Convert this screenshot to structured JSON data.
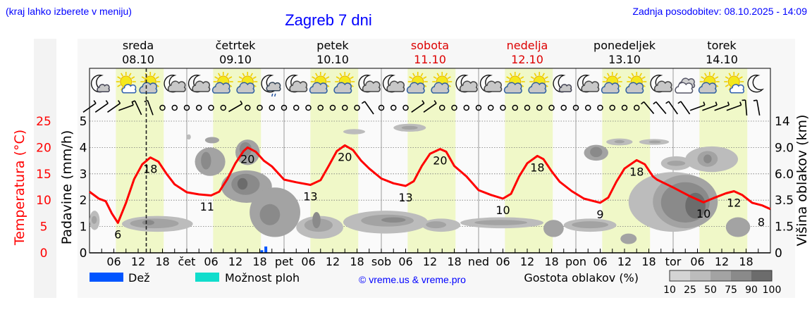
{
  "header": {
    "hint": "(kraj lahko izberete v meniju)",
    "title": "Zagreb 7 dni",
    "updated": "Zadnja posodobitev: 08.10.2025 - 14:09"
  },
  "colors": {
    "link_blue": "#0000ff",
    "temperature": "#ff0000",
    "weekend": "#dd0000",
    "daylight": "#f0f8c8",
    "rain": "#0055ff",
    "showers": "#11ddcc"
  },
  "days": [
    {
      "name": "sreda",
      "date": "08.10",
      "short": "",
      "weekend": false
    },
    {
      "name": "četrtek",
      "date": "09.10",
      "short": "čet",
      "weekend": false
    },
    {
      "name": "petek",
      "date": "10.10",
      "short": "pet",
      "weekend": false
    },
    {
      "name": "sobota",
      "date": "11.10",
      "short": "sob",
      "weekend": true
    },
    {
      "name": "nedelja",
      "date": "12.10",
      "short": "ned",
      "weekend": true
    },
    {
      "name": "ponedeljek",
      "date": "13.10",
      "short": "pon",
      "weekend": false
    },
    {
      "name": "torek",
      "date": "14.10",
      "short": "tor",
      "weekend": false
    }
  ],
  "hour_labels": [
    "06",
    "12",
    "18"
  ],
  "chart_data": {
    "type": "line",
    "x_unit": "hours from 08.10 00:00",
    "xlim": [
      0,
      168
    ],
    "now_marker_hour": 14,
    "axes": {
      "temperature": {
        "label": "Temperatura (°C)",
        "ticks": [
          "0",
          "5",
          "10",
          "15",
          "20",
          "25"
        ],
        "range": [
          0,
          25
        ]
      },
      "precipitation": {
        "label": "Padavine (mm/h)",
        "ticks": [
          "0",
          "1",
          "2",
          "3",
          "4",
          "5"
        ],
        "range": [
          0,
          5
        ]
      },
      "cloud_height": {
        "label": "Višina oblakov (km)",
        "ticks": [
          "0",
          "1.5",
          "3.5",
          "6.0",
          "9.0",
          "14"
        ],
        "values": [
          0,
          1.5,
          3.5,
          6.0,
          9.0,
          14
        ]
      }
    },
    "grid": true,
    "daylight_hours": [
      6.5,
      18.3
    ],
    "temperature": [
      [
        0,
        11.6
      ],
      [
        2.3,
        10.3
      ],
      [
        4,
        9.8
      ],
      [
        5.5,
        7.5
      ],
      [
        7,
        5.7
      ],
      [
        9,
        9.5
      ],
      [
        11,
        14
      ],
      [
        13,
        16.8
      ],
      [
        15,
        18.1
      ],
      [
        17,
        17.3
      ],
      [
        19,
        15
      ],
      [
        21,
        13
      ],
      [
        24,
        11.5
      ],
      [
        27,
        11.1
      ],
      [
        30,
        10.9
      ],
      [
        32,
        11.6
      ],
      [
        34,
        14
      ],
      [
        36,
        17
      ],
      [
        38,
        19.3
      ],
      [
        39,
        20
      ],
      [
        41,
        19.2
      ],
      [
        43,
        17.5
      ],
      [
        45,
        16.4
      ],
      [
        48,
        13.9
      ],
      [
        51,
        13.4
      ],
      [
        54.5,
        12.9
      ],
      [
        57,
        13.8
      ],
      [
        59,
        16.5
      ],
      [
        61,
        19.3
      ],
      [
        63,
        20.4
      ],
      [
        65,
        19.5
      ],
      [
        67,
        17.5
      ],
      [
        69,
        16
      ],
      [
        72,
        14.1
      ],
      [
        75,
        13.2
      ],
      [
        78,
        12.7
      ],
      [
        80,
        13.6
      ],
      [
        82,
        16.5
      ],
      [
        84,
        18.8
      ],
      [
        86.5,
        19.7
      ],
      [
        88,
        19.2
      ],
      [
        90,
        16.5
      ],
      [
        93,
        14.5
      ],
      [
        96,
        11.9
      ],
      [
        99,
        11
      ],
      [
        102,
        10.3
      ],
      [
        104,
        11.2
      ],
      [
        106,
        14.5
      ],
      [
        108,
        17
      ],
      [
        110.5,
        18.4
      ],
      [
        112,
        17.8
      ],
      [
        114,
        15.5
      ],
      [
        116,
        13.5
      ],
      [
        119,
        11.7
      ],
      [
        122,
        10.3
      ],
      [
        126,
        9.5
      ],
      [
        128,
        10.5
      ],
      [
        130,
        13.5
      ],
      [
        132,
        16
      ],
      [
        135,
        17.6
      ],
      [
        137,
        16.8
      ],
      [
        139,
        14.5
      ],
      [
        140,
        13.9
      ],
      [
        144,
        12.4
      ],
      [
        148,
        10.8
      ],
      [
        151.5,
        9.6
      ],
      [
        154,
        10.4
      ],
      [
        157,
        11.3
      ],
      [
        159,
        11.7
      ],
      [
        161,
        11
      ],
      [
        163.5,
        9.5
      ],
      [
        166,
        9
      ],
      [
        168,
        8.3
      ]
    ],
    "temperature_labels": [
      {
        "hour": 7,
        "value": "6"
      },
      {
        "hour": 15,
        "value": "18"
      },
      {
        "hour": 29,
        "value": "11"
      },
      {
        "hour": 39,
        "value": "20"
      },
      {
        "hour": 54.5,
        "value": "13"
      },
      {
        "hour": 63,
        "value": "20"
      },
      {
        "hour": 78,
        "value": "13"
      },
      {
        "hour": 86.5,
        "value": "20"
      },
      {
        "hour": 102,
        "value": "10"
      },
      {
        "hour": 110.5,
        "value": "18"
      },
      {
        "hour": 126,
        "value": "9"
      },
      {
        "hour": 135,
        "value": "18"
      },
      {
        "hour": 151.5,
        "value": "10"
      },
      {
        "hour": 159,
        "value": "12"
      },
      {
        "hour": 168,
        "value": "8"
      }
    ],
    "precipitation": [
      {
        "hour": 42.5,
        "rain": 0.1
      },
      {
        "hour": 43.5,
        "rain": 0.24
      }
    ],
    "cloud_cover": [
      {
        "h": [
          0,
          2.5
        ],
        "km": [
          1.3,
          2.7
        ],
        "d": 25
      },
      {
        "h": [
          0.5,
          1.8
        ],
        "km": [
          1.7,
          2.3
        ],
        "d": 50
      },
      {
        "h": [
          8,
          25.5
        ],
        "km": [
          1.2,
          2.3
        ],
        "d": 25
      },
      {
        "h": [
          10,
          22
        ],
        "km": [
          1.4,
          2.1
        ],
        "d": 50
      },
      {
        "h": [
          13,
          16
        ],
        "km": [
          1.6,
          2.0
        ],
        "d": 75
      },
      {
        "h": [
          26,
          33.5
        ],
        "km": [
          5.8,
          9
        ],
        "d": 50
      },
      {
        "h": [
          27.5,
          30
        ],
        "km": [
          6.5,
          8.5
        ],
        "d": 75
      },
      {
        "h": [
          28.5,
          32
        ],
        "km": [
          9.8,
          11
        ],
        "d": 50
      },
      {
        "h": [
          24,
          25
        ],
        "km": [
          10.5,
          11.5
        ],
        "d": 25
      },
      {
        "h": [
          36,
          42
        ],
        "km": [
          7,
          10.5
        ],
        "d": 50
      },
      {
        "h": [
          37,
          40
        ],
        "km": [
          8,
          10
        ],
        "d": 75
      },
      {
        "h": [
          32.5,
          45
        ],
        "km": [
          3.3,
          6.4
        ],
        "d": 50
      },
      {
        "h": [
          35,
          42
        ],
        "km": [
          4,
          6
        ],
        "d": 75
      },
      {
        "h": [
          36.5,
          39
        ],
        "km": [
          4.5,
          5.6
        ],
        "d": 90
      },
      {
        "h": [
          39.5,
          52
        ],
        "km": [
          0.9,
          4.7
        ],
        "d": 50
      },
      {
        "h": [
          42,
          47
        ],
        "km": [
          1.6,
          3.2
        ],
        "d": 75
      },
      {
        "h": [
          51,
          62.6
        ],
        "km": [
          0.8,
          2.3
        ],
        "d": 25
      },
      {
        "h": [
          53,
          60
        ],
        "km": [
          1.2,
          2.1
        ],
        "d": 50
      },
      {
        "h": [
          55,
          57
        ],
        "km": [
          1.4,
          2.6
        ],
        "d": 75
      },
      {
        "h": [
          62.6,
          83.5
        ],
        "km": [
          1.1,
          2.7
        ],
        "d": 25
      },
      {
        "h": [
          67,
          80
        ],
        "km": [
          1.5,
          2.4
        ],
        "d": 50
      },
      {
        "h": [
          72,
          78
        ],
        "km": [
          1.8,
          2.2
        ],
        "d": 75
      },
      {
        "h": [
          75,
          83
        ],
        "km": [
          12,
          13.5
        ],
        "d": 25
      },
      {
        "h": [
          77,
          81
        ],
        "km": [
          12.4,
          13.1
        ],
        "d": 50
      },
      {
        "h": [
          62.6,
          68
        ],
        "km": [
          11.5,
          12.5
        ],
        "d": 25
      },
      {
        "h": [
          82,
          91.5
        ],
        "km": [
          1.2,
          2.1
        ],
        "d": 25
      },
      {
        "h": [
          83,
          88
        ],
        "km": [
          1.4,
          1.9
        ],
        "d": 50
      },
      {
        "h": [
          91.5,
          112
        ],
        "km": [
          1.4,
          2.2
        ],
        "d": 25
      },
      {
        "h": [
          95,
          108
        ],
        "km": [
          1.6,
          2.0
        ],
        "d": 50
      },
      {
        "h": [
          112,
          117
        ],
        "km": [
          0.9,
          2.0
        ],
        "d": 50
      },
      {
        "h": [
          117,
          130
        ],
        "km": [
          1.2,
          2.1
        ],
        "d": 25
      },
      {
        "h": [
          119,
          128
        ],
        "km": [
          1.4,
          1.9
        ],
        "d": 50
      },
      {
        "h": [
          131,
          135
        ],
        "km": [
          0.5,
          1.1
        ],
        "d": 50
      },
      {
        "h": [
          122,
          128
        ],
        "km": [
          7.5,
          9.5
        ],
        "d": 50
      },
      {
        "h": [
          123.5,
          126.5
        ],
        "km": [
          7.9,
          9.1
        ],
        "d": 75
      },
      {
        "h": [
          127.5,
          134
        ],
        "km": [
          9.4,
          10.7
        ],
        "d": 25
      },
      {
        "h": [
          129.5,
          132
        ],
        "km": [
          9.8,
          10.4
        ],
        "d": 50
      },
      {
        "h": [
          135.6,
          143
        ],
        "km": [
          9.5,
          10.6
        ],
        "d": 25
      },
      {
        "h": [
          138,
          141
        ],
        "km": [
          9.8,
          10.3
        ],
        "d": 50
      },
      {
        "h": [
          141,
          148.5
        ],
        "km": [
          6.4,
          8
        ],
        "d": 25
      },
      {
        "h": [
          142.5,
          147
        ],
        "km": [
          6.9,
          7.5
        ],
        "d": 50
      },
      {
        "h": [
          147,
          160
        ],
        "km": [
          6.2,
          9.2
        ],
        "d": 25
      },
      {
        "h": [
          150,
          155
        ],
        "km": [
          6.8,
          8.6
        ],
        "d": 50
      },
      {
        "h": [
          151.5,
          153.5
        ],
        "km": [
          7.2,
          8.2
        ],
        "d": 75
      },
      {
        "h": [
          133,
          155
        ],
        "km": [
          1.2,
          6.2
        ],
        "d": 25
      },
      {
        "h": [
          139,
          155
        ],
        "km": [
          1.4,
          5.9
        ],
        "d": 50
      },
      {
        "h": [
          141,
          153
        ],
        "km": [
          1.8,
          5.2
        ],
        "d": 75
      },
      {
        "h": [
          147,
          152
        ],
        "km": [
          2.1,
          4.2
        ],
        "d": 90
      },
      {
        "h": [
          157,
          163
        ],
        "km": [
          0.9,
          2.2
        ],
        "d": 50
      }
    ],
    "cloud_legend": {
      "label": "Gostota oblakov (%)",
      "levels": [
        "10",
        "25",
        "50",
        "75",
        "90",
        "100"
      ],
      "colors": [
        "#d4d4d4",
        "#bcbcbc",
        "#a3a3a3",
        "#8a8a8a",
        "#6c6c6c"
      ]
    },
    "legend": [
      {
        "key": "rain",
        "label": "Dež"
      },
      {
        "key": "showers",
        "label": "Možnost ploh"
      }
    ]
  },
  "weather_icons": [
    "moon-small-cloud",
    "sun-small-cloud",
    "sun-cloud",
    "moon-cloud",
    "moon-cloud",
    "sun-cloud",
    "sun-cloud",
    "moon-cloud-rain",
    "moon-cloud",
    "sun-cloud",
    "sun-cloud",
    "moon-cloud",
    "moon-cloud",
    "sun-cloud",
    "sun-cloud",
    "moon-cloud",
    "moon-cloud",
    "sun-cloud",
    "sun-cloud",
    "moon-small-cloud",
    "moon-cloud",
    "sun-cloud",
    "sun-cloud",
    "moon-cloud",
    "overcast",
    "sun-cloud",
    "sun-small-cloud",
    "moon"
  ],
  "wind": [
    {
      "t": "barb",
      "dir": -35
    },
    {
      "t": "barb",
      "dir": -35
    },
    {
      "t": "barb",
      "dir": -35
    },
    {
      "t": "barb",
      "dir": -20
    },
    {
      "t": "barb",
      "dir": -115
    },
    {
      "t": "barb",
      "dir": -110
    },
    {
      "t": "calm"
    },
    {
      "t": "calm"
    },
    {
      "t": "calm"
    },
    {
      "t": "calm"
    },
    {
      "t": "calm"
    },
    {
      "t": "calm"
    },
    {
      "t": "barb",
      "dir": -30
    },
    {
      "t": "calm"
    },
    {
      "t": "calm"
    },
    {
      "t": "calm"
    },
    {
      "t": "calm"
    },
    {
      "t": "calm"
    },
    {
      "t": "calm"
    },
    {
      "t": "calm"
    },
    {
      "t": "calm"
    },
    {
      "t": "calm"
    },
    {
      "t": "calm"
    },
    {
      "t": "barb",
      "dir": -125
    },
    {
      "t": "calm"
    },
    {
      "t": "calm"
    },
    {
      "t": "calm"
    },
    {
      "t": "barb",
      "dir": -35
    },
    {
      "t": "barb",
      "dir": -35
    },
    {
      "t": "calm"
    },
    {
      "t": "calm"
    },
    {
      "t": "calm"
    },
    {
      "t": "calm"
    },
    {
      "t": "calm"
    },
    {
      "t": "calm"
    },
    {
      "t": "calm"
    },
    {
      "t": "calm"
    },
    {
      "t": "calm"
    },
    {
      "t": "calm"
    },
    {
      "t": "calm"
    },
    {
      "t": "calm"
    },
    {
      "t": "calm"
    },
    {
      "t": "calm"
    },
    {
      "t": "calm"
    },
    {
      "t": "calm"
    },
    {
      "t": "calm"
    },
    {
      "t": "barb",
      "dir": -130
    },
    {
      "t": "barb",
      "dir": -130
    },
    {
      "t": "barb",
      "dir": -125
    },
    {
      "t": "barb",
      "dir": -125
    },
    {
      "t": "barb",
      "dir": -20
    },
    {
      "t": "barb",
      "dir": -20
    },
    {
      "t": "barb",
      "dir": -20
    },
    {
      "t": "barb",
      "dir": -20
    },
    {
      "t": "barb",
      "dir": -95
    },
    {
      "t": "barb",
      "dir": -100
    }
  ],
  "footer": {
    "copyright": "© vreme.us & vreme.pro"
  }
}
